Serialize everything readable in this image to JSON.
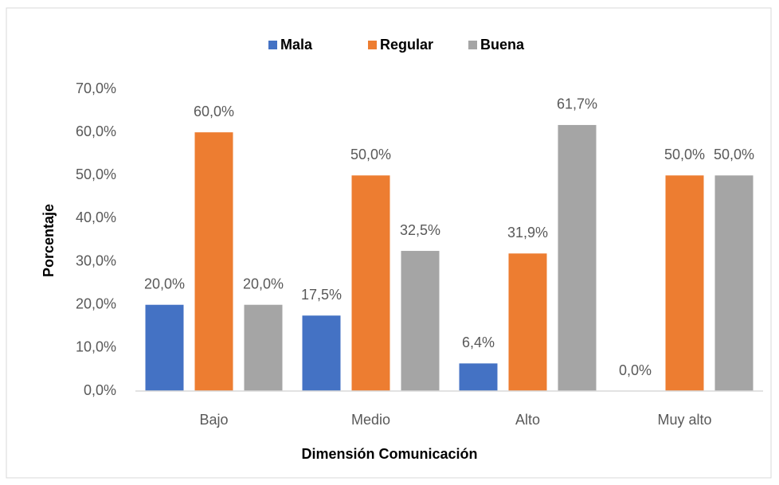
{
  "chart_data": {
    "type": "bar",
    "x_label": "Dimensión Comunicación",
    "y_label": "Porcentaje",
    "categories": [
      "Bajo",
      "Medio",
      "Alto",
      "Muy alto"
    ],
    "series": [
      {
        "name": "Mala",
        "color": "#4472c4",
        "values": [
          20,
          17.5,
          6.4,
          0
        ],
        "value_labels": [
          "20,0%",
          "17,5%",
          "6,4%",
          "0,0%"
        ]
      },
      {
        "name": "Regular",
        "color": "#ed7d31",
        "values": [
          60,
          50,
          31.9,
          50
        ],
        "value_labels": [
          "60,0%",
          "50,0%",
          "31,9%",
          "50,0%"
        ]
      },
      {
        "name": "Buena",
        "color": "#a5a5a5",
        "values": [
          20,
          32.5,
          61.7,
          50
        ],
        "value_labels": [
          "20,0%",
          "32,5%",
          "61,7%",
          "50,0%"
        ]
      }
    ],
    "ylim": [
      0,
      70
    ],
    "yticks": [
      {
        "value": 0,
        "label": "0,0%"
      },
      {
        "value": 10,
        "label": "10,0%"
      },
      {
        "value": 20,
        "label": "20,0%"
      },
      {
        "value": 30,
        "label": "30,0%"
      },
      {
        "value": 40,
        "label": "40,0%"
      },
      {
        "value": 50,
        "label": "50,0%"
      },
      {
        "value": 60,
        "label": "60,0%"
      },
      {
        "value": 70,
        "label": "70,0%"
      }
    ],
    "grid": false,
    "legend": "top"
  }
}
